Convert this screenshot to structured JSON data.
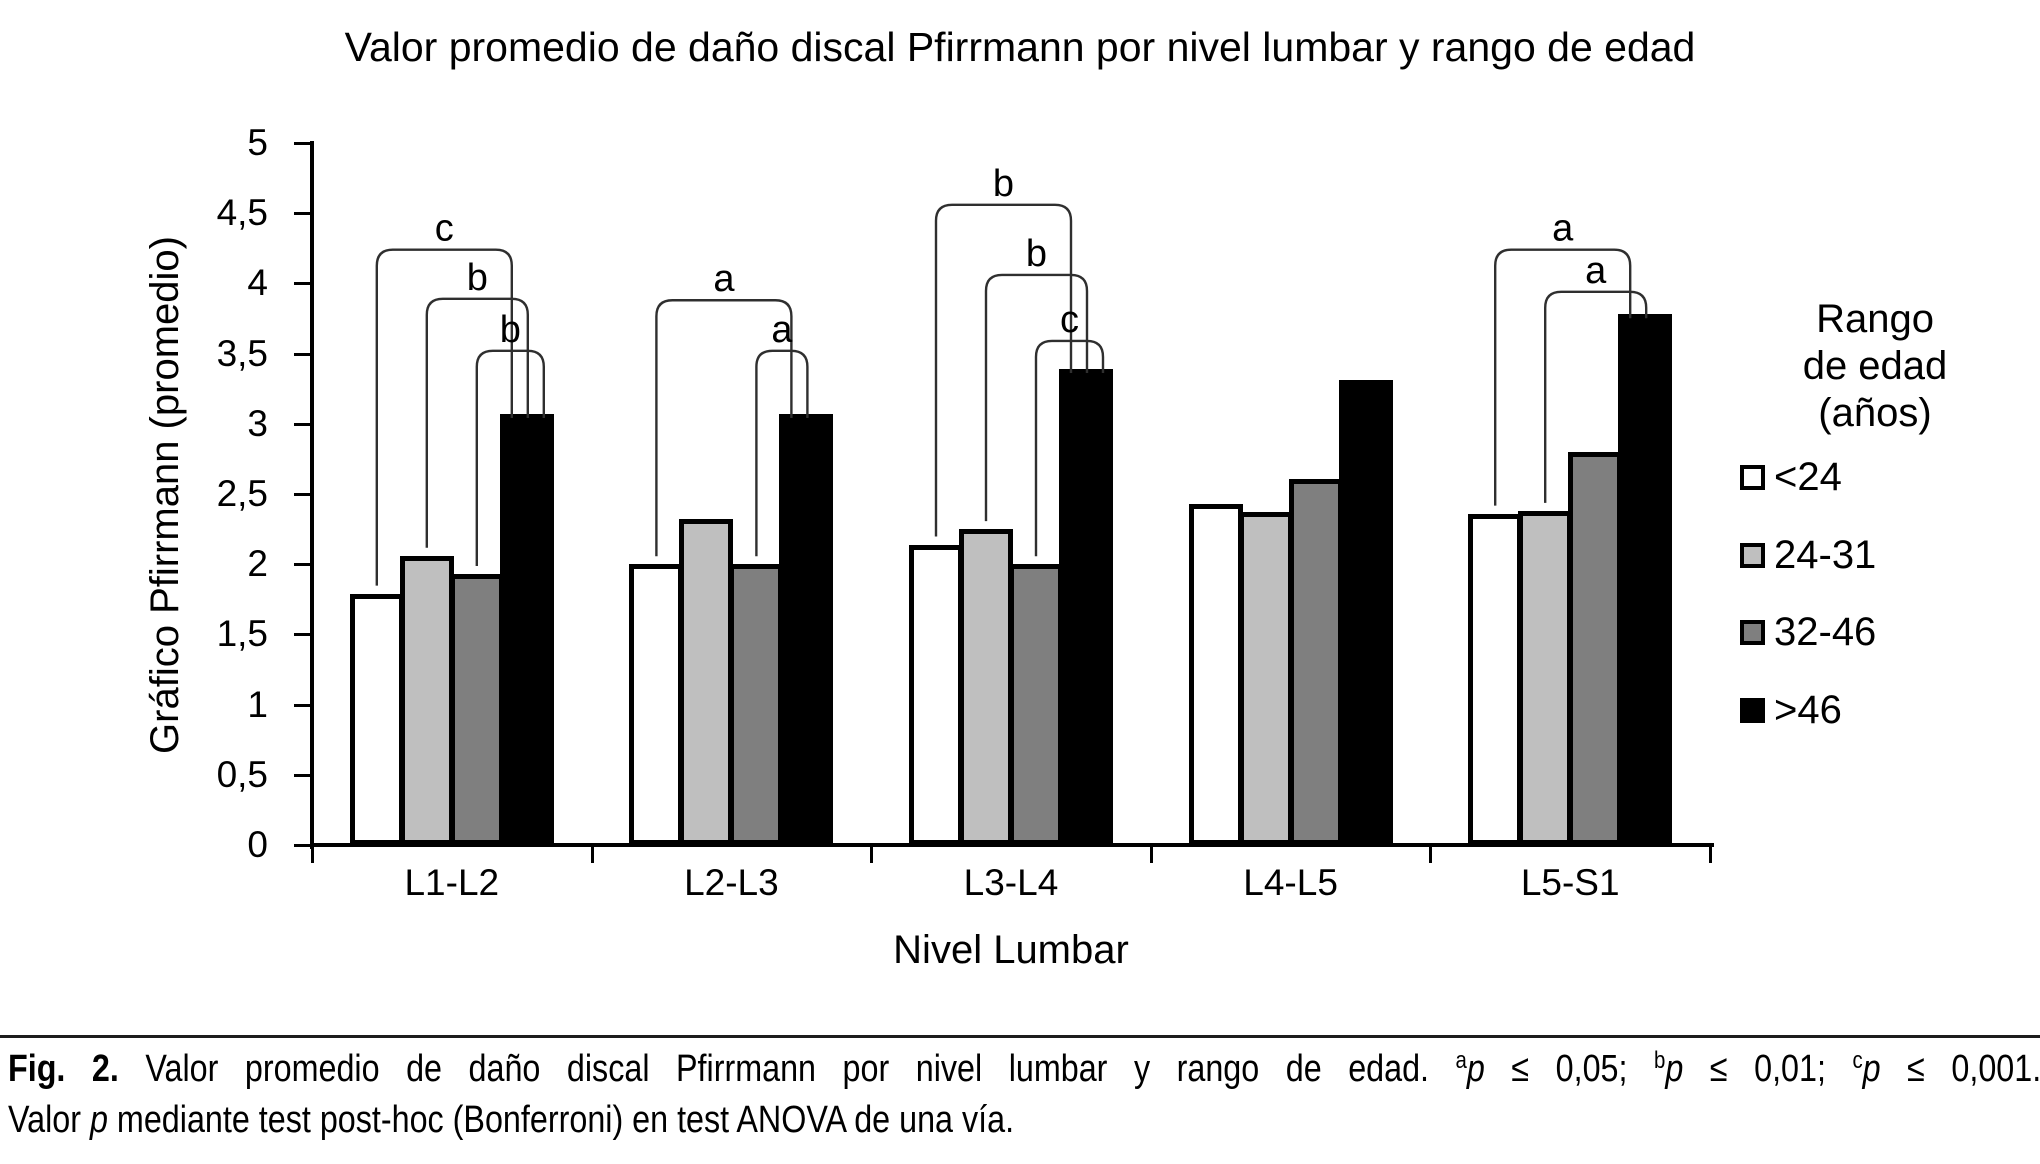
{
  "figure": {
    "title": "Valor promedio de daño discal Pfirrmann por nivel lumbar y rango de edad",
    "caption": {
      "line1": [
        {
          "t": "Fig. 2.",
          "bold": true
        },
        {
          "t": " Valor promedio de daño discal Pfirrmann por nivel lumbar y rango de edad. "
        },
        {
          "t": "a",
          "sup": true
        },
        {
          "t": "p",
          "italic": true
        },
        {
          "t": " ≤ 0,05; "
        },
        {
          "t": "b",
          "sup": true
        },
        {
          "t": "p",
          "italic": true
        },
        {
          "t": " ≤ 0,01; "
        },
        {
          "t": "c",
          "sup": true
        },
        {
          "t": "p",
          "italic": true
        },
        {
          "t": " ≤ 0,001."
        }
      ],
      "line2": [
        {
          "t": "Valor "
        },
        {
          "t": "p",
          "italic": true
        },
        {
          "t": " mediante test post-hoc (Bonferroni) en test ANOVA de una vía."
        }
      ]
    }
  },
  "chart_data": {
    "type": "bar",
    "title": "Valor promedio de daño discal Pfirrmann por nivel lumbar y rango de edad",
    "xlabel": "Nivel Lumbar",
    "ylabel": "Gráfico Pfirrmann (promedio)",
    "ylim": [
      0,
      5
    ],
    "ytick_step": 0.5,
    "ytick_labels": [
      "0",
      "0,5",
      "1",
      "1,5",
      "2",
      "2,5",
      "3",
      "3,5",
      "4",
      "4,5",
      "5"
    ],
    "grid": false,
    "categories": [
      "L1-L2",
      "L2-L3",
      "L3-L4",
      "L4-L5",
      "L5-S1"
    ],
    "series": [
      {
        "name": "<24",
        "color": "#ffffff",
        "values": [
          1.79,
          2.0,
          2.14,
          2.43,
          2.36
        ]
      },
      {
        "name": "24-31",
        "color": "#bfbfbf",
        "values": [
          2.06,
          2.32,
          2.25,
          2.37,
          2.38
        ]
      },
      {
        "name": "32-46",
        "color": "#7f7f7f",
        "values": [
          1.93,
          2.0,
          2.0,
          2.61,
          2.8
        ]
      },
      {
        "name": ">46",
        "color": "#000000",
        "values": [
          3.07,
          3.07,
          3.39,
          3.31,
          3.78
        ]
      }
    ],
    "legend": {
      "position": "right",
      "title_lines": [
        "Rango",
        "de edad",
        "(años)"
      ],
      "items": [
        "<24",
        "24-31",
        "32-46",
        ">46"
      ]
    },
    "significance_brackets": [
      {
        "group": "L1-L2",
        "label": "c",
        "from_series": "<24",
        "to_series": ">46",
        "height": 4.24
      },
      {
        "group": "L1-L2",
        "label": "b",
        "from_series": "24-31",
        "to_series": ">46",
        "height": 3.89
      },
      {
        "group": "L1-L2",
        "label": "b",
        "from_series": "32-46",
        "to_series": ">46",
        "height": 3.52
      },
      {
        "group": "L2-L3",
        "label": "a",
        "from_series": "<24",
        "to_series": ">46",
        "height": 3.88
      },
      {
        "group": "L2-L3",
        "label": "a",
        "from_series": "32-46",
        "to_series": ">46",
        "height": 3.52
      },
      {
        "group": "L3-L4",
        "label": "b",
        "from_series": "<24",
        "to_series": ">46",
        "height": 4.56
      },
      {
        "group": "L3-L4",
        "label": "b",
        "from_series": "24-31",
        "to_series": ">46",
        "height": 4.06
      },
      {
        "group": "L3-L4",
        "label": "c",
        "from_series": "32-46",
        "to_series": ">46",
        "height": 3.59
      },
      {
        "group": "L5-S1",
        "label": "a",
        "from_series": "<24",
        "to_series": ">46",
        "height": 4.24
      },
      {
        "group": "L5-S1",
        "label": "a",
        "from_series": "24-31",
        "to_series": ">46",
        "height": 3.94
      }
    ]
  }
}
